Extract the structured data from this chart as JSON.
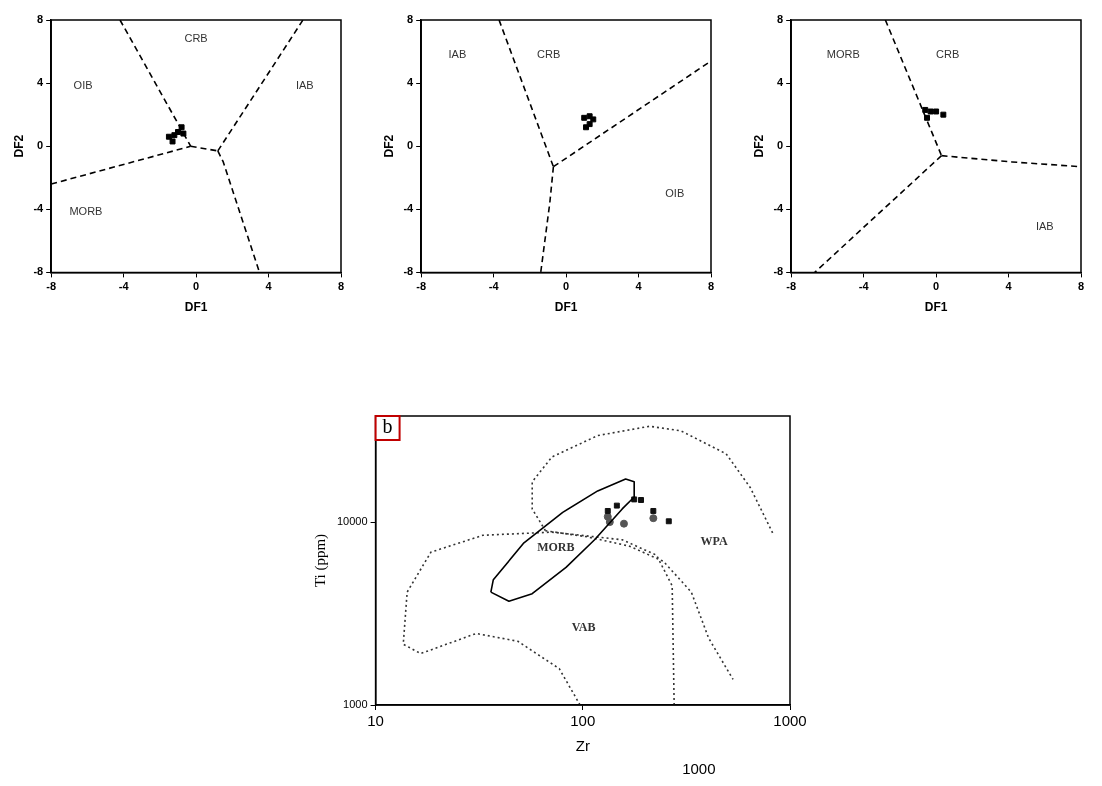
{
  "chart_data": [
    {
      "type": "scatter",
      "xlabel": "DF1",
      "ylabel": "DF2",
      "xlim": [
        -8,
        8
      ],
      "ylim": [
        -8,
        8
      ],
      "xticks": [
        -8,
        -4,
        0,
        4,
        8
      ],
      "yticks": [
        -8,
        -4,
        0,
        4,
        8
      ],
      "series": [
        {
          "type": "line",
          "color": "#000000",
          "line_style": "dashed",
          "marker": "none",
          "x": [
            -4.2,
            -0.3
          ],
          "values": [
            8,
            0
          ]
        },
        {
          "type": "line",
          "color": "#000000",
          "line_style": "dashed",
          "marker": "none",
          "x": [
            -8,
            -0.6,
            -0.3
          ],
          "values": [
            -2.4,
            -0.1,
            0
          ]
        },
        {
          "type": "line",
          "color": "#000000",
          "line_style": "dashed",
          "marker": "none",
          "x": [
            -0.3,
            1.2
          ],
          "values": [
            0,
            -0.3
          ]
        },
        {
          "type": "line",
          "color": "#000000",
          "line_style": "dashed",
          "marker": "none",
          "x": [
            1.2,
            5.9
          ],
          "values": [
            -0.3,
            8
          ]
        },
        {
          "type": "line",
          "color": "#000000",
          "line_style": "dashed",
          "marker": "none",
          "x": [
            1.2,
            1.5,
            3.5
          ],
          "values": [
            -0.3,
            -1,
            -8
          ]
        },
        {
          "color": "#000000",
          "marker": "square",
          "x": [
            -1.5,
            -1.2,
            -1.0,
            -0.8,
            -1.3,
            -0.7
          ],
          "values": [
            0.6,
            0.7,
            0.9,
            1.2,
            0.3,
            0.8
          ]
        }
      ],
      "annotations": [
        "CRB",
        "OIB",
        "IAB",
        "MORB"
      ]
    },
    {
      "type": "scatter",
      "xlabel": "DF1",
      "ylabel": "DF2",
      "xlim": [
        -8,
        8
      ],
      "ylim": [
        -8,
        8
      ],
      "xticks": [
        -8,
        -4,
        0,
        4,
        8
      ],
      "yticks": [
        -8,
        -4,
        0,
        4,
        8
      ],
      "series": [
        {
          "type": "line",
          "color": "#000000",
          "line_style": "dashed",
          "marker": "none",
          "x": [
            -3.7,
            -0.7
          ],
          "values": [
            8,
            -1.3
          ]
        },
        {
          "type": "line",
          "color": "#000000",
          "line_style": "dashed",
          "marker": "none",
          "x": [
            -0.7,
            8
          ],
          "values": [
            -1.3,
            5.4
          ]
        },
        {
          "type": "line",
          "color": "#000000",
          "line_style": "dashed",
          "marker": "none",
          "x": [
            -0.7,
            -0.9,
            -1.4
          ],
          "values": [
            -1.3,
            -3.6,
            -8
          ]
        },
        {
          "color": "#000000",
          "marker": "square",
          "x": [
            1.0,
            1.3,
            1.5,
            1.1,
            1.3
          ],
          "values": [
            1.8,
            1.9,
            1.7,
            1.2,
            1.4
          ]
        }
      ],
      "annotations": [
        "IAB",
        "CRB",
        "OIB"
      ]
    },
    {
      "type": "scatter",
      "xlabel": "DF1",
      "ylabel": "DF2",
      "xlim": [
        -8,
        8
      ],
      "ylim": [
        -8,
        8
      ],
      "xticks": [
        -8,
        -4,
        0,
        4,
        8
      ],
      "yticks": [
        -8,
        -4,
        0,
        4,
        8
      ],
      "series": [
        {
          "type": "line",
          "color": "#000000",
          "line_style": "dashed",
          "marker": "none",
          "x": [
            -2.8,
            0.3
          ],
          "values": [
            8,
            -0.6
          ]
        },
        {
          "type": "line",
          "color": "#000000",
          "line_style": "dashed",
          "marker": "none",
          "x": [
            0.3,
            4.2,
            8
          ],
          "values": [
            -0.6,
            -1,
            -1.3
          ]
        },
        {
          "type": "line",
          "color": "#000000",
          "line_style": "dashed",
          "marker": "none",
          "x": [
            0.3,
            -6.7
          ],
          "values": [
            -0.6,
            -8
          ]
        },
        {
          "color": "#000000",
          "marker": "square",
          "x": [
            -0.6,
            -0.3,
            0,
            0.4,
            -0.5
          ],
          "values": [
            2.3,
            2.2,
            2.2,
            2.0,
            1.8
          ]
        }
      ],
      "annotations": [
        "MORB",
        "CRB",
        "IAB"
      ]
    },
    {
      "type": "scatter",
      "title": "b",
      "xlabel": "Zr",
      "ylabel": "Ti (ppm)",
      "log": "xy",
      "xlim": [
        10,
        1000
      ],
      "ylim": [
        1000,
        38000
      ],
      "xticks": [
        10,
        100,
        1000
      ],
      "yticks": [
        1000,
        10000
      ],
      "series": [
        {
          "type": "line",
          "color": "#000000",
          "line_style": "solid",
          "marker": "none",
          "x": [
            36,
            37,
            52,
            80,
            118,
            161,
            177,
            177
          ],
          "values": [
            4140,
            4840,
            7700,
            11300,
            14800,
            17200,
            16600,
            13700
          ]
        },
        {
          "type": "line",
          "color": "#000000",
          "line_style": "solid",
          "marker": "none",
          "x": [
            36,
            44,
            57,
            83,
            114,
            155,
            177
          ],
          "values": [
            4140,
            3690,
            4060,
            5650,
            8000,
            11800,
            13700
          ]
        },
        {
          "type": "line",
          "color": "#333333",
          "line_style": "dotted",
          "marker": "none",
          "x": [
            66,
            57,
            57,
            71,
            118,
            210,
            298,
            492,
            644,
            828
          ],
          "values": [
            8970,
            11800,
            16600,
            22700,
            29700,
            33400,
            31500,
            23600,
            15400,
            8630
          ]
        },
        {
          "type": "line",
          "color": "#333333",
          "line_style": "dotted",
          "marker": "none",
          "x": [
            66,
            105,
            167,
            245,
            334,
            405,
            531
          ],
          "values": [
            8970,
            8300,
            7400,
            6100,
            4140,
            2320,
            1380
          ]
        },
        {
          "type": "line",
          "color": "#333333",
          "line_style": "dotted",
          "marker": "none",
          "x": [
            276,
            270,
            227,
            155,
            71,
            33,
            18.5,
            14.2,
            13.6,
            16.5,
            30.6,
            48.6,
            77,
            97
          ],
          "values": [
            1000,
            4480,
            6590,
            8000,
            8810,
            8470,
            6850,
            4140,
            2150,
            1910,
            2460,
            2230,
            1580,
            1000
          ]
        },
        {
          "color": "#111111",
          "marker": "square",
          "x": [
            146,
            177,
            191,
            219,
            260,
            132
          ],
          "values": [
            12300,
            13300,
            13200,
            11500,
            10100,
            11500
          ]
        },
        {
          "color": "#555555",
          "marker": "circle",
          "x": [
            132,
            135,
            158,
            219
          ],
          "values": [
            10700,
            10000,
            9800,
            10500
          ]
        }
      ],
      "annotations": [
        "MORB",
        "WPA",
        "VAB",
        "1000"
      ]
    }
  ]
}
